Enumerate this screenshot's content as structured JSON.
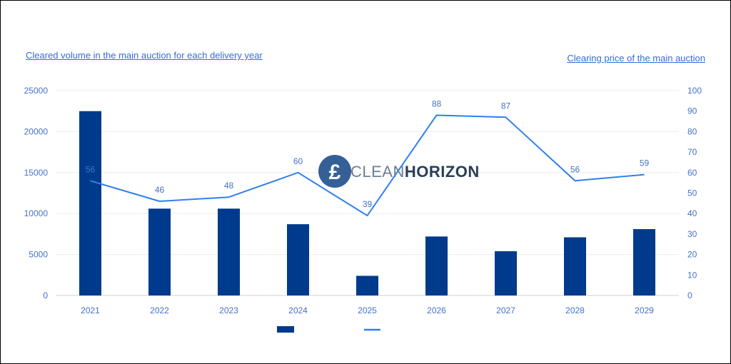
{
  "chart_data": {
    "type": "bar+line",
    "categories": [
      "2021",
      "2022",
      "2023",
      "2024",
      "2025",
      "2026",
      "2027",
      "2028",
      "2029"
    ],
    "series": [
      {
        "type": "bar",
        "axis": "left",
        "values": [
          22500,
          10600,
          10600,
          8700,
          2400,
          7200,
          5400,
          7100,
          8100
        ],
        "color": "#003a8c"
      },
      {
        "type": "line",
        "axis": "right",
        "values": [
          56,
          46,
          48,
          60,
          39,
          88,
          87,
          56,
          59
        ],
        "data_labels": [
          "56",
          "46",
          "48",
          "60",
          "39",
          "88",
          "87",
          "56",
          "59"
        ],
        "color": "#2f80ed"
      }
    ],
    "left_axis": {
      "title": "Cleared volume in the main auction for each delivery year",
      "ylim": [
        0,
        25000
      ],
      "ticks": [
        "0",
        "5000",
        "10000",
        "15000",
        "20000",
        "25000"
      ]
    },
    "right_axis": {
      "title": "Clearing price of the main auction",
      "ylim": [
        0,
        100
      ],
      "ticks": [
        "0",
        "10",
        "20",
        "30",
        "40",
        "50",
        "60",
        "70",
        "80",
        "90",
        "100"
      ]
    },
    "grid": true,
    "legend": "bottom-center",
    "watermark": "CLEANHORIZON"
  }
}
